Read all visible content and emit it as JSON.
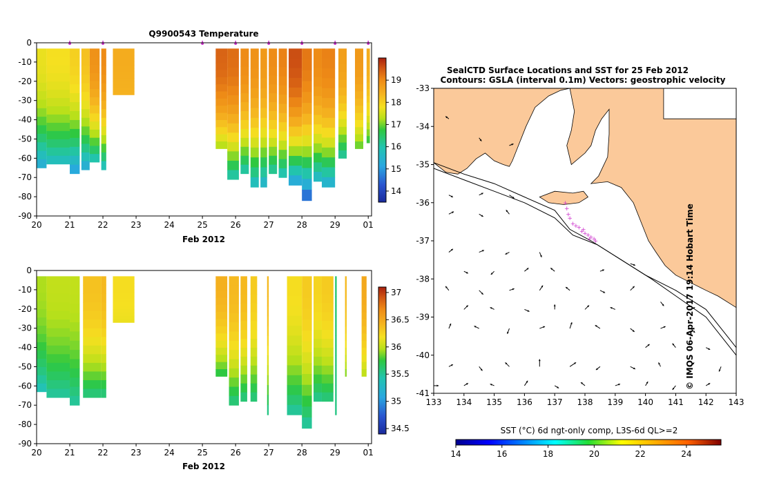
{
  "colors": {
    "land": "#fbc99a",
    "marker": "#cc33cc",
    "frame": "#000000"
  },
  "chart_data": [
    {
      "id": "temperature",
      "type": "heatmap",
      "title": "Q9900543  Temperature",
      "xlabel": "Feb 2012",
      "ylabel": "",
      "x_ticks": [
        "20",
        "21",
        "22",
        "23",
        "24",
        "25",
        "26",
        "27",
        "28",
        "29",
        "01"
      ],
      "y_ticks": [
        "0",
        "-10",
        "-20",
        "-30",
        "-40",
        "-50",
        "-60",
        "-70",
        "-80",
        "-90"
      ],
      "xlim": [
        20,
        30.1
      ],
      "ylim": [
        -90,
        0
      ],
      "colorbar": {
        "min": 13.5,
        "max": 20,
        "ticks": [
          "14",
          "15",
          "16",
          "17",
          "18",
          "19"
        ]
      },
      "profile_markers": [
        21,
        22,
        25,
        26,
        27,
        28,
        29,
        30
      ],
      "profiles": [
        {
          "t0": 20.0,
          "t1": 20.3,
          "bottom": -65,
          "surface": 17.7,
          "deep": 15.4
        },
        {
          "t0": 20.3,
          "t1": 21.0,
          "bottom": -63,
          "surface": 17.8,
          "deep": 15.8
        },
        {
          "t0": 21.0,
          "t1": 21.3,
          "bottom": -68,
          "surface": 18.0,
          "deep": 15.2
        },
        {
          "t0": 21.35,
          "t1": 21.6,
          "bottom": -66,
          "surface": 18.2,
          "deep": 15.4
        },
        {
          "t0": 21.6,
          "t1": 21.9,
          "bottom": -62,
          "surface": 18.9,
          "deep": 16.0
        },
        {
          "t0": 21.95,
          "t1": 22.1,
          "bottom": -66,
          "surface": 19.0,
          "deep": 15.9
        },
        {
          "t0": 22.3,
          "t1": 22.95,
          "bottom": -27,
          "surface": 18.5,
          "deep": 18.4
        },
        {
          "t0": 25.4,
          "t1": 25.75,
          "bottom": -55,
          "surface": 19.4,
          "deep": 17.3
        },
        {
          "t0": 25.75,
          "t1": 26.1,
          "bottom": -71,
          "surface": 19.3,
          "deep": 16.1
        },
        {
          "t0": 26.15,
          "t1": 26.4,
          "bottom": -68,
          "surface": 19.0,
          "deep": 16.1
        },
        {
          "t0": 26.45,
          "t1": 26.7,
          "bottom": -75,
          "surface": 18.9,
          "deep": 15.8
        },
        {
          "t0": 26.75,
          "t1": 26.95,
          "bottom": -75,
          "surface": 18.8,
          "deep": 15.6
        },
        {
          "t0": 27.0,
          "t1": 27.25,
          "bottom": -68,
          "surface": 19.0,
          "deep": 16.2
        },
        {
          "t0": 27.3,
          "t1": 27.55,
          "bottom": -70,
          "surface": 19.1,
          "deep": 16.0
        },
        {
          "t0": 27.6,
          "t1": 28.0,
          "bottom": -74,
          "surface": 19.6,
          "deep": 15.3
        },
        {
          "t0": 28.0,
          "t1": 28.3,
          "bottom": -82,
          "surface": 19.2,
          "deep": 14.6
        },
        {
          "t0": 28.35,
          "t1": 28.6,
          "bottom": -72,
          "surface": 19.0,
          "deep": 15.7
        },
        {
          "t0": 28.6,
          "t1": 29.0,
          "bottom": -75,
          "surface": 19.1,
          "deep": 15.5
        },
        {
          "t0": 29.1,
          "t1": 29.35,
          "bottom": -60,
          "surface": 18.7,
          "deep": 16.2
        },
        {
          "t0": 29.6,
          "t1": 29.85,
          "bottom": -55,
          "surface": 18.8,
          "deep": 17.0
        },
        {
          "t0": 29.95,
          "t1": 30.05,
          "bottom": -52,
          "surface": 18.5,
          "deep": 16.8
        }
      ]
    },
    {
      "id": "salinity",
      "type": "heatmap",
      "title": "",
      "xlabel": "Feb 2012",
      "ylabel": "",
      "x_ticks": [
        "20",
        "21",
        "22",
        "23",
        "24",
        "25",
        "26",
        "27",
        "28",
        "29",
        "01"
      ],
      "y_ticks": [
        "0",
        "-10",
        "-20",
        "-30",
        "-40",
        "-50",
        "-60",
        "-70",
        "-80",
        "-90"
      ],
      "xlim": [
        20,
        30.1
      ],
      "ylim": [
        -90,
        0
      ],
      "colorbar": {
        "min": 34.4,
        "max": 37.1,
        "ticks": [
          "34.5",
          "35",
          "35.5",
          "36",
          "36.5",
          "37"
        ]
      },
      "profiles": [
        {
          "t0": 20.0,
          "t1": 20.3,
          "bottom": -63,
          "surface": 35.95,
          "deep": 35.4
        },
        {
          "t0": 20.3,
          "t1": 21.0,
          "bottom": -66,
          "surface": 36.0,
          "deep": 35.5
        },
        {
          "t0": 21.0,
          "t1": 21.3,
          "bottom": -70,
          "surface": 36.0,
          "deep": 35.5
        },
        {
          "t0": 21.4,
          "t1": 21.95,
          "bottom": -66,
          "surface": 36.35,
          "deep": 35.6
        },
        {
          "t0": 21.95,
          "t1": 22.1,
          "bottom": -66,
          "surface": 36.4,
          "deep": 35.6
        },
        {
          "t0": 22.3,
          "t1": 22.95,
          "bottom": -27,
          "surface": 36.2,
          "deep": 36.15
        },
        {
          "t0": 25.4,
          "t1": 25.75,
          "bottom": -55,
          "surface": 36.45,
          "deep": 35.75
        },
        {
          "t0": 25.8,
          "t1": 26.1,
          "bottom": -70,
          "surface": 36.4,
          "deep": 35.6
        },
        {
          "t0": 26.15,
          "t1": 26.35,
          "bottom": -68,
          "surface": 36.4,
          "deep": 35.6
        },
        {
          "t0": 26.45,
          "t1": 26.65,
          "bottom": -68,
          "surface": 36.3,
          "deep": 35.6
        },
        {
          "t0": 26.95,
          "t1": 27.0,
          "bottom": -75,
          "surface": 36.4,
          "deep": 35.55
        },
        {
          "t0": 27.55,
          "t1": 28.0,
          "bottom": -75,
          "surface": 36.2,
          "deep": 35.5
        },
        {
          "t0": 28.0,
          "t1": 28.3,
          "bottom": -82,
          "surface": 36.3,
          "deep": 35.5
        },
        {
          "t0": 28.35,
          "t1": 28.6,
          "bottom": -68,
          "surface": 36.25,
          "deep": 35.55
        },
        {
          "t0": 28.6,
          "t1": 28.95,
          "bottom": -68,
          "surface": 36.3,
          "deep": 35.6
        },
        {
          "t0": 29.0,
          "t1": 29.05,
          "bottom": -75,
          "surface": 35.6,
          "deep": 35.55
        },
        {
          "t0": 29.3,
          "t1": 29.35,
          "bottom": -55,
          "surface": 36.4,
          "deep": 35.9
        },
        {
          "t0": 29.8,
          "t1": 29.95,
          "bottom": -55,
          "surface": 36.5,
          "deep": 36.0
        }
      ]
    },
    {
      "id": "sst-map",
      "type": "map",
      "title": "SealCTD Surface Locations and SST for 25 Feb 2012",
      "subtitle": "Contours: GSLA (interval 0.1m) Vectors: geostrophic velocity",
      "x_ticks": [
        "133",
        "134",
        "135",
        "136",
        "137",
        "138",
        "139",
        "140",
        "141",
        "142",
        "143"
      ],
      "y_ticks": [
        "-33",
        "-34",
        "-35",
        "-36",
        "-37",
        "-38",
        "-39",
        "-40",
        "-41"
      ],
      "xlim": [
        133,
        143
      ],
      "ylim": [
        -41,
        -33
      ],
      "colorbar": {
        "label": "SST (°C) 6d ngt-only comp, L3S-6d QL>=2",
        "min": 14,
        "max": 25.5,
        "ticks": [
          "14",
          "16",
          "18",
          "20",
          "22",
          "24"
        ]
      },
      "side_note": "© IMOS 06-Apr-2017 19:14 Hobart Time",
      "coastline": [
        [
          133,
          -34.95
        ],
        [
          133.4,
          -35.2
        ],
        [
          133.8,
          -35.25
        ],
        [
          134.1,
          -35.1
        ],
        [
          134.4,
          -34.85
        ],
        [
          134.7,
          -34.7
        ],
        [
          135.0,
          -34.9
        ],
        [
          135.3,
          -35.0
        ],
        [
          135.5,
          -35.05
        ],
        [
          135.6,
          -34.9
        ],
        [
          135.75,
          -34.6
        ],
        [
          136.05,
          -34.0
        ],
        [
          136.35,
          -33.5
        ],
        [
          136.8,
          -33.2
        ],
        [
          137.2,
          -33.05
        ],
        [
          137.5,
          -33.0
        ],
        [
          137.65,
          -33.6
        ],
        [
          137.55,
          -34.1
        ],
        [
          137.4,
          -34.5
        ],
        [
          137.55,
          -35.0
        ],
        [
          138.0,
          -34.7
        ],
        [
          138.2,
          -34.5
        ],
        [
          138.35,
          -34.1
        ],
        [
          138.55,
          -33.8
        ],
        [
          138.8,
          -33.55
        ],
        [
          138.8,
          -34.2
        ],
        [
          138.75,
          -34.8
        ],
        [
          138.45,
          -35.3
        ],
        [
          138.2,
          -35.5
        ],
        [
          138.75,
          -35.45
        ],
        [
          139.2,
          -35.6
        ],
        [
          139.6,
          -36.0
        ],
        [
          139.9,
          -36.6
        ],
        [
          140.1,
          -37.0
        ],
        [
          140.35,
          -37.3
        ],
        [
          140.65,
          -37.65
        ],
        [
          141.0,
          -37.9
        ],
        [
          141.5,
          -38.1
        ],
        [
          142.0,
          -38.3
        ],
        [
          142.4,
          -38.45
        ],
        [
          143,
          -38.75
        ],
        [
          143,
          -33
        ],
        [
          133,
          -33
        ]
      ],
      "land_patches": [
        [
          [
            136.5,
            -35.85
          ],
          [
            137.0,
            -35.7
          ],
          [
            137.6,
            -35.75
          ],
          [
            137.95,
            -35.7
          ],
          [
            138.1,
            -35.85
          ],
          [
            137.8,
            -36.0
          ],
          [
            137.3,
            -36.05
          ],
          [
            136.8,
            -36.0
          ]
        ]
      ],
      "gap_region": [
        [
          140.6,
          -33
        ],
        [
          143,
          -33
        ],
        [
          143,
          -33.8
        ],
        [
          140.6,
          -33.8
        ]
      ],
      "contours": [
        [
          [
            133,
            -34.95
          ],
          [
            134,
            -35.25
          ],
          [
            135,
            -35.5
          ],
          [
            136,
            -35.85
          ],
          [
            137,
            -36.2
          ],
          [
            137.5,
            -36.7
          ],
          [
            138.2,
            -37.0
          ],
          [
            139,
            -37.4
          ],
          [
            140,
            -37.9
          ],
          [
            141,
            -38.3
          ],
          [
            142,
            -38.8
          ],
          [
            142.7,
            -39.5
          ],
          [
            143,
            -39.8
          ]
        ],
        [
          [
            133,
            -35.1
          ],
          [
            134,
            -35.4
          ],
          [
            135,
            -35.7
          ],
          [
            136,
            -36.0
          ],
          [
            137,
            -36.4
          ],
          [
            137.6,
            -36.85
          ],
          [
            138.4,
            -37.1
          ],
          [
            139.2,
            -37.5
          ],
          [
            140.2,
            -38.0
          ],
          [
            141.1,
            -38.5
          ],
          [
            142.0,
            -39.0
          ],
          [
            142.6,
            -39.6
          ],
          [
            143,
            -40.0
          ]
        ]
      ],
      "ctd_locations": [
        [
          137.35,
          -36.0
        ],
        [
          137.4,
          -36.15
        ],
        [
          137.5,
          -36.4
        ],
        [
          137.6,
          -36.55
        ],
        [
          137.7,
          -36.6
        ],
        [
          137.8,
          -36.65
        ],
        [
          137.9,
          -36.75
        ],
        [
          138.0,
          -36.8
        ],
        [
          138.1,
          -36.85
        ],
        [
          138.2,
          -36.9
        ],
        [
          138.3,
          -36.95
        ],
        [
          138.35,
          -37.0
        ],
        [
          137.45,
          -36.3
        ],
        [
          137.95,
          -36.7
        ],
        [
          138.15,
          -36.95
        ]
      ],
      "vectors": [
        [
          133.5,
          -37.3,
          0.1,
          0.08
        ],
        [
          134.5,
          -37.3,
          0.12,
          0.05
        ],
        [
          135.5,
          -37.3,
          -0.1,
          -0.05
        ],
        [
          136.5,
          -37.3,
          0.05,
          -0.12
        ],
        [
          133.5,
          -38.3,
          -0.08,
          0.1
        ],
        [
          134.5,
          -38.3,
          0.1,
          -0.1
        ],
        [
          135.5,
          -38.3,
          0.12,
          0.04
        ],
        [
          136.5,
          -38.3,
          0.08,
          0.12
        ],
        [
          137.5,
          -38.3,
          -0.1,
          0.08
        ],
        [
          138.5,
          -38.3,
          0.12,
          -0.06
        ],
        [
          139.5,
          -38.3,
          0.1,
          0.1
        ],
        [
          133.5,
          -39.3,
          0.05,
          0.12
        ],
        [
          134.5,
          -39.3,
          -0.12,
          0.06
        ],
        [
          135.5,
          -39.3,
          -0.05,
          -0.13
        ],
        [
          136.5,
          -39.3,
          0.13,
          0.05
        ],
        [
          137.5,
          -39.3,
          0.05,
          0.15
        ],
        [
          138.5,
          -39.3,
          -0.12,
          0.08
        ],
        [
          139.5,
          -39.3,
          0.1,
          -0.08
        ],
        [
          140.5,
          -39.3,
          0.12,
          0.05
        ],
        [
          141.5,
          -39.3,
          0.1,
          -0.1
        ],
        [
          133.5,
          -40.3,
          0.1,
          0.05
        ],
        [
          134.5,
          -40.3,
          0.08,
          -0.1
        ],
        [
          135.5,
          -40.3,
          -0.1,
          0.1
        ],
        [
          136.5,
          -40.3,
          0.0,
          0.18
        ],
        [
          137.5,
          -40.3,
          0.15,
          0.1
        ],
        [
          138.5,
          -40.3,
          -0.1,
          -0.08
        ],
        [
          139.5,
          -40.3,
          0.12,
          -0.06
        ],
        [
          140.5,
          -40.3,
          -0.05,
          0.1
        ],
        [
          141.5,
          -40.3,
          0.08,
          0.1
        ],
        [
          142.5,
          -40.3,
          -0.05,
          -0.12
        ],
        [
          133.5,
          -36.3,
          0.12,
          0.06
        ],
        [
          134.5,
          -36.3,
          0.1,
          -0.06
        ],
        [
          135.5,
          -36.3,
          -0.08,
          0.1
        ],
        [
          138.5,
          -37.8,
          0.1,
          0.04
        ],
        [
          139.5,
          -37.6,
          0.12,
          -0.04
        ],
        [
          140.5,
          -38.6,
          0.08,
          -0.1
        ],
        [
          141.5,
          -38.8,
          0.1,
          0.05
        ],
        [
          133.5,
          -35.8,
          0.1,
          -0.05
        ],
        [
          134.5,
          -35.8,
          0.1,
          0.05
        ],
        [
          135.5,
          -35.8,
          0.12,
          -0.08
        ],
        [
          133.5,
          -33.8,
          -0.08,
          0.06
        ],
        [
          134.5,
          -34.3,
          0.06,
          -0.08
        ],
        [
          135.5,
          -34.5,
          0.1,
          0.04
        ],
        [
          134.0,
          -38.8,
          0.1,
          0.1
        ],
        [
          135.0,
          -38.8,
          -0.1,
          0.05
        ],
        [
          136.0,
          -38.8,
          0.12,
          -0.05
        ],
        [
          137.0,
          -38.8,
          0.0,
          0.12
        ],
        [
          138.0,
          -38.8,
          0.1,
          0.1
        ],
        [
          139.0,
          -38.8,
          -0.12,
          0.05
        ],
        [
          140.0,
          -39.8,
          0.1,
          0.08
        ],
        [
          141.0,
          -39.8,
          -0.08,
          0.1
        ],
        [
          142.0,
          -39.8,
          0.1,
          -0.05
        ],
        [
          134.0,
          -37.8,
          0.1,
          -0.05
        ],
        [
          135.0,
          -37.8,
          -0.08,
          -0.08
        ],
        [
          136.0,
          -37.8,
          0.1,
          0.08
        ],
        [
          137.0,
          -37.8,
          -0.1,
          0.08
        ],
        [
          133.0,
          -40.8,
          0.12,
          0.0
        ],
        [
          134.0,
          -40.8,
          0.1,
          0.06
        ],
        [
          135.0,
          -40.8,
          -0.1,
          0.04
        ],
        [
          136.0,
          -40.8,
          0.08,
          0.12
        ],
        [
          137.0,
          -40.8,
          0.1,
          -0.06
        ],
        [
          138.0,
          -40.8,
          -0.1,
          0.08
        ],
        [
          139.0,
          -40.8,
          0.12,
          0.04
        ],
        [
          140.0,
          -40.8,
          0.06,
          0.1
        ],
        [
          141.0,
          -40.8,
          -0.08,
          -0.1
        ],
        [
          142.0,
          -40.8,
          0.1,
          0.06
        ]
      ]
    }
  ]
}
